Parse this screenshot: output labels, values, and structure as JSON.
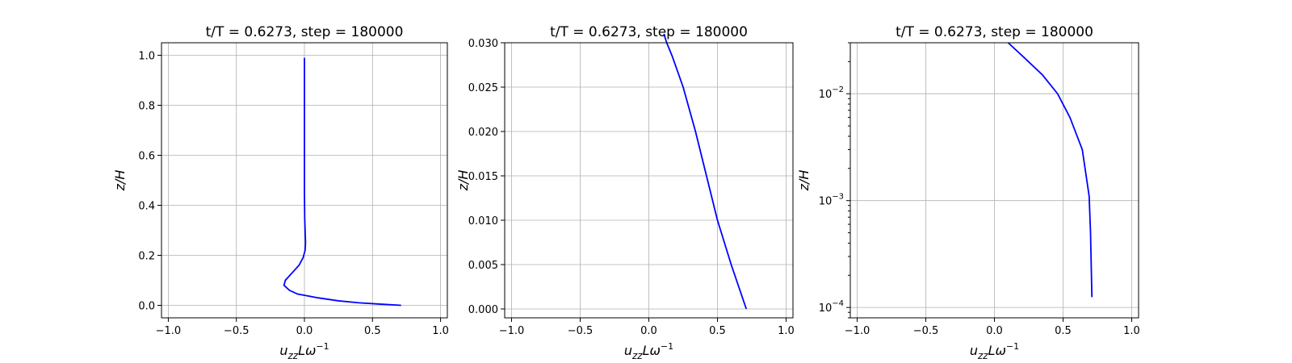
{
  "chart_data": [
    {
      "type": "line",
      "title": "t/T = 0.6273, step = 180000",
      "xlabel_base": "u",
      "xlabel_sub": "zz",
      "xlabel_mid": "Lω",
      "xlabel_sup": "−1",
      "ylabel": "z/H",
      "xlim": [
        -1.05,
        1.05
      ],
      "ylim": [
        -0.05,
        1.05
      ],
      "yscale": "linear",
      "grid": true,
      "xticks": [
        -1.0,
        -0.5,
        0.0,
        0.5,
        1.0
      ],
      "xtick_labels": [
        "−1.0",
        "−0.5",
        "0.0",
        "0.5",
        "1.0"
      ],
      "yticks": [
        0.0,
        0.2,
        0.4,
        0.6,
        0.8,
        1.0
      ],
      "ytick_labels": [
        "0.0",
        "0.2",
        "0.4",
        "0.6",
        "0.8",
        "1.0"
      ],
      "series": [
        {
          "color": "#0000ff",
          "x": [
            0.71,
            0.55,
            0.4,
            0.25,
            0.1,
            -0.05,
            -0.11,
            -0.15,
            -0.14,
            -0.09,
            -0.04,
            -0.01,
            0.005,
            0.008,
            0.005,
            0.002,
            0.0,
            0.0,
            0.0,
            0.0
          ],
          "y": [
            0.0,
            0.005,
            0.01,
            0.018,
            0.03,
            0.045,
            0.06,
            0.08,
            0.1,
            0.13,
            0.16,
            0.19,
            0.22,
            0.25,
            0.3,
            0.35,
            0.45,
            0.6,
            0.8,
            0.99
          ]
        }
      ]
    },
    {
      "type": "line",
      "title": "t/T = 0.6273, step = 180000",
      "xlabel_base": "u",
      "xlabel_sub": "zz",
      "xlabel_mid": "Lω",
      "xlabel_sup": "−1",
      "ylabel": "z/H",
      "xlim": [
        -1.05,
        1.05
      ],
      "ylim": [
        -0.001,
        0.03
      ],
      "yscale": "linear",
      "grid": true,
      "xticks": [
        -1.0,
        -0.5,
        0.0,
        0.5,
        1.0
      ],
      "xtick_labels": [
        "−1.0",
        "−0.5",
        "0.0",
        "0.5",
        "1.0"
      ],
      "yticks": [
        0.0,
        0.005,
        0.01,
        0.015,
        0.02,
        0.025,
        0.03
      ],
      "ytick_labels": [
        "0.000",
        "0.005",
        "0.010",
        "0.015",
        "0.020",
        "0.025",
        "0.030"
      ],
      "series": [
        {
          "color": "#0000ff",
          "x": [
            0.71,
            0.6,
            0.5,
            0.42,
            0.34,
            0.25,
            0.17,
            0.13,
            0.11
          ],
          "y": [
            0.0,
            0.005,
            0.01,
            0.015,
            0.02,
            0.025,
            0.0285,
            0.03,
            0.031
          ]
        }
      ]
    },
    {
      "type": "line",
      "title": "t/T = 0.6273, step = 180000",
      "xlabel_base": "u",
      "xlabel_sub": "zz",
      "xlabel_mid": "Lω",
      "xlabel_sup": "−1",
      "ylabel": "z/H",
      "xlim": [
        -1.05,
        1.05
      ],
      "ylim": [
        8e-05,
        0.03
      ],
      "yscale": "log",
      "grid": true,
      "xticks": [
        -1.0,
        -0.5,
        0.0,
        0.5,
        1.0
      ],
      "xtick_labels": [
        "−1.0",
        "−0.5",
        "0.0",
        "0.5",
        "1.0"
      ],
      "yticks": [
        0.0001,
        0.001,
        0.01
      ],
      "ytick_base": "10",
      "ytick_exponents": [
        "−4",
        "−3",
        "−2"
      ],
      "series": [
        {
          "color": "#0000ff",
          "x": [
            0.71,
            0.7,
            0.69,
            0.64,
            0.55,
            0.46,
            0.35,
            0.23,
            0.1
          ],
          "y": [
            0.000125,
            0.0005,
            0.0011,
            0.003,
            0.006,
            0.01,
            0.015,
            0.021,
            0.03
          ]
        }
      ]
    }
  ]
}
